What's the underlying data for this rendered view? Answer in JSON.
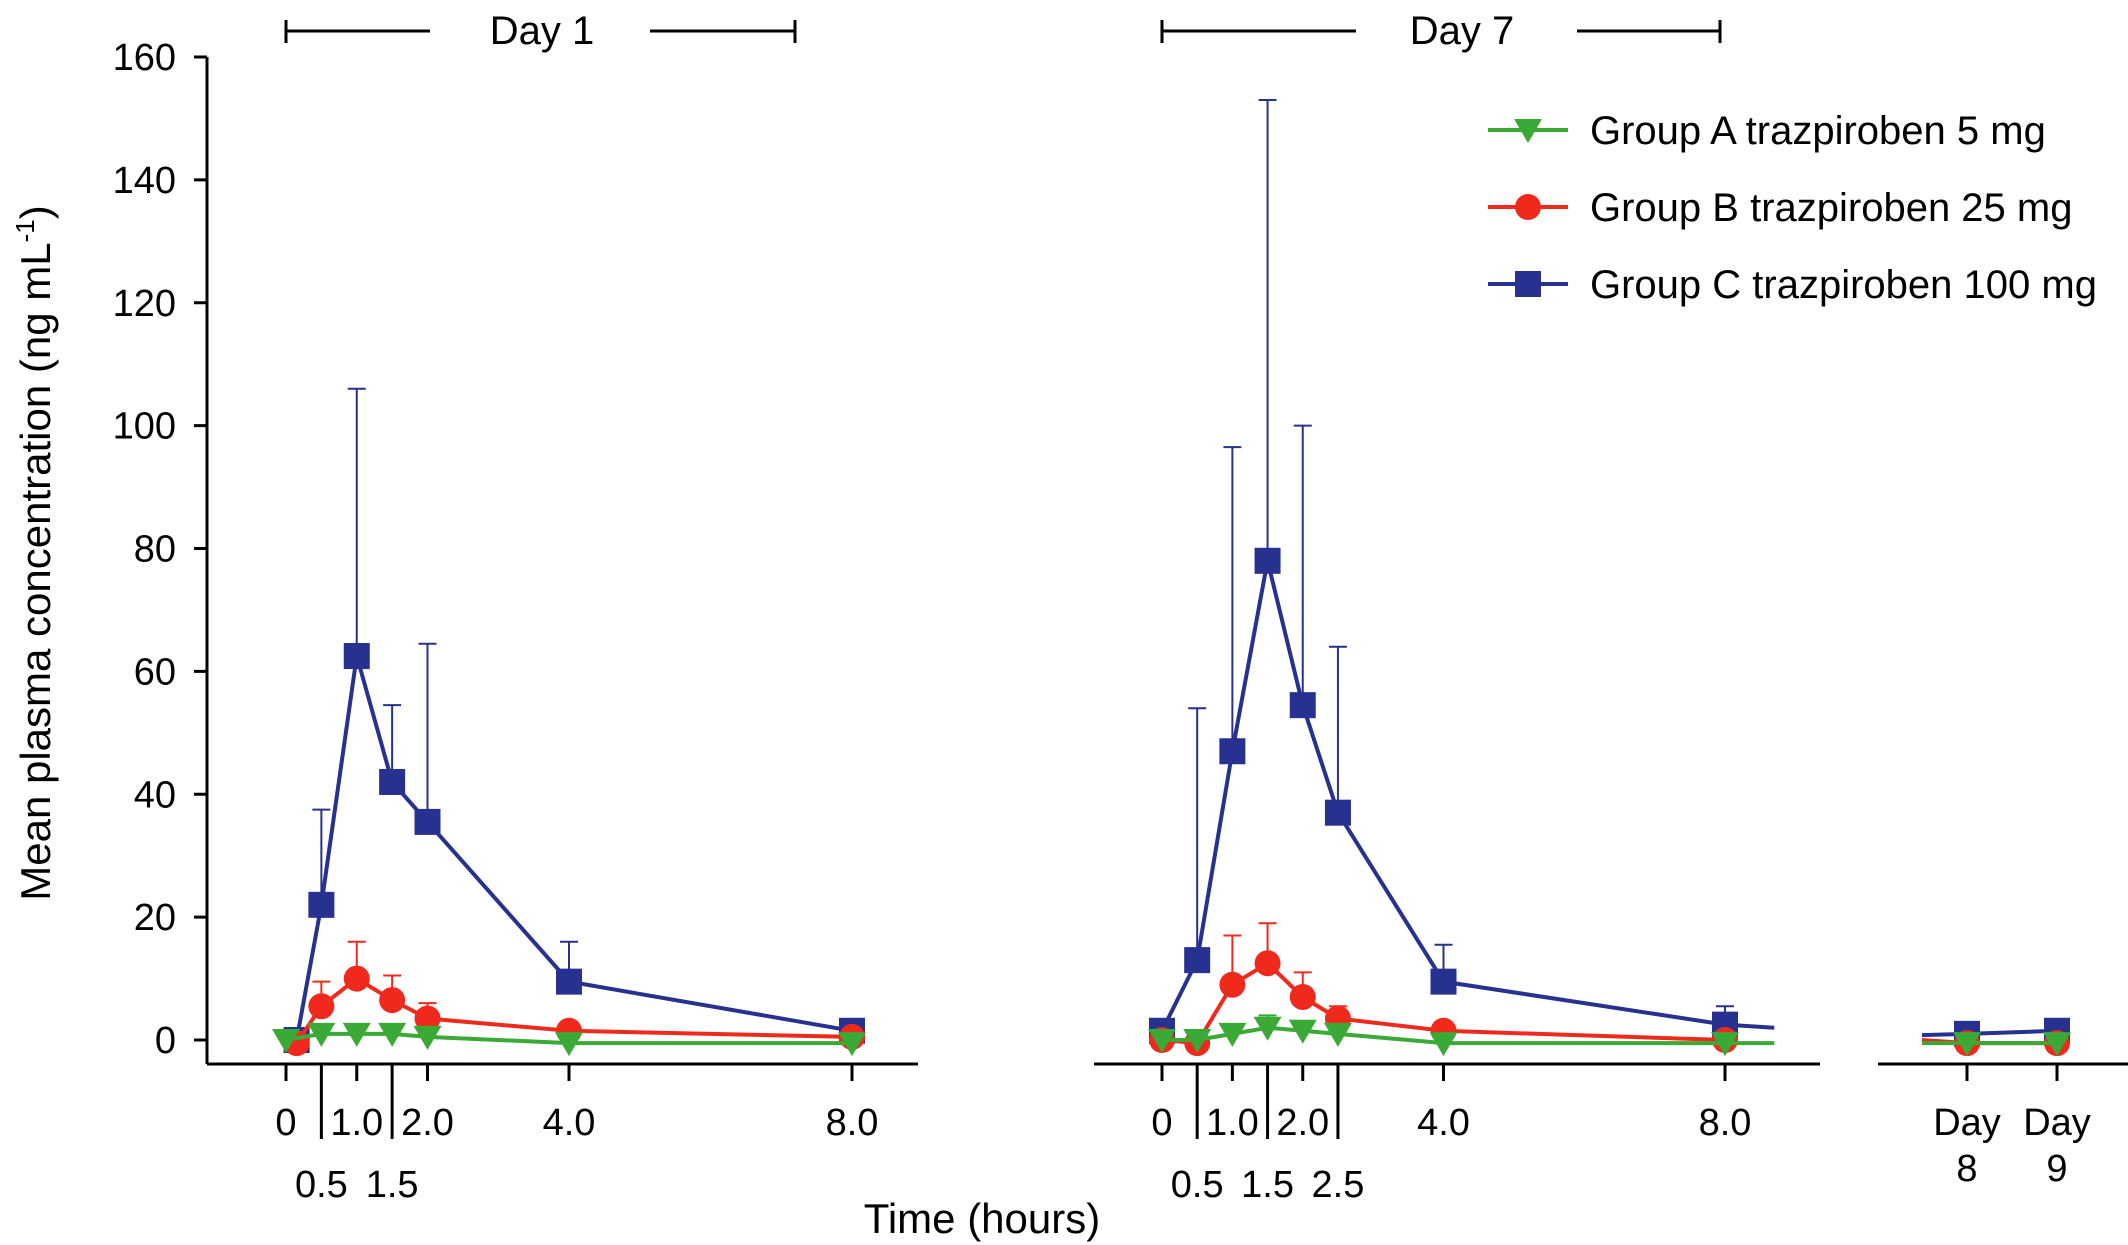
{
  "chart_data": {
    "type": "line",
    "ylabel": "Mean plasma concentration (ng mL",
    "ylabel_sup": "-1",
    "ylabel_close": ")",
    "xlabel": "Time (hours)",
    "ylim": [
      0,
      160
    ],
    "yticks": [
      0,
      20,
      40,
      60,
      80,
      100,
      120,
      140,
      160
    ],
    "colors": {
      "A": "#3aa935",
      "B": "#ef2a1c",
      "C": "#27318f"
    },
    "legend_position": "top-right",
    "series_legend": [
      {
        "key": "A",
        "name": "Group A trazpiroben 5 mg",
        "marker": "triangle-down"
      },
      {
        "key": "B",
        "name": "Group B trazpiroben 25 mg",
        "marker": "circle"
      },
      {
        "key": "C",
        "name": "Group C trazpiroben 100 mg",
        "marker": "square"
      }
    ],
    "panels": [
      {
        "id": "day1",
        "header": "Day 1",
        "x_range": [
          0,
          8
        ],
        "ticks": [
          {
            "x": 0,
            "label": "0",
            "row": "top"
          },
          {
            "x": 0.5,
            "label": "0.5",
            "row": "bottom"
          },
          {
            "x": 1.0,
            "label": "1.0",
            "row": "top"
          },
          {
            "x": 1.5,
            "label": "1.5",
            "row": "bottom"
          },
          {
            "x": 2.0,
            "label": "2.0",
            "row": "top"
          },
          {
            "x": 4.0,
            "label": "4.0",
            "row": "top"
          },
          {
            "x": 8.0,
            "label": "8.0",
            "row": "top"
          }
        ],
        "series": {
          "A": {
            "x": [
              0,
              0.5,
              1.0,
              1.5,
              2.0,
              4.0,
              8.0
            ],
            "y": [
              0,
              1,
              1,
              1,
              0.5,
              -0.5,
              -0.5
            ]
          },
          "B": {
            "x": [
              0.15,
              0.5,
              1.0,
              1.5,
              2.0,
              4.0,
              8.0
            ],
            "y": [
              -0.5,
              5.5,
              10,
              6.5,
              3.5,
              1.5,
              0.5
            ],
            "err": [
              null,
              9.5,
              16,
              10.5,
              6,
              null,
              null
            ]
          },
          "C": {
            "x": [
              0.15,
              0.5,
              1.0,
              1.5,
              2.0,
              4.0,
              8.0
            ],
            "y": [
              0,
              22,
              62.5,
              42,
              35.5,
              9.5,
              1.5
            ],
            "err": [
              null,
              37.5,
              106,
              54.5,
              64.5,
              16,
              null
            ]
          }
        }
      },
      {
        "id": "day7",
        "header": "Day 7",
        "x_range": [
          0,
          8
        ],
        "ticks": [
          {
            "x": 0,
            "label": "0",
            "row": "top"
          },
          {
            "x": 0.5,
            "label": "0.5",
            "row": "bottom"
          },
          {
            "x": 1.0,
            "label": "1.0",
            "row": "top"
          },
          {
            "x": 1.5,
            "label": "1.5",
            "row": "bottom"
          },
          {
            "x": 2.0,
            "label": "2.0",
            "row": "top"
          },
          {
            "x": 2.5,
            "label": "2.5",
            "row": "bottom"
          },
          {
            "x": 4.0,
            "label": "4.0",
            "row": "top"
          },
          {
            "x": 8.0,
            "label": "8.0",
            "row": "top"
          }
        ],
        "series": {
          "A": {
            "x": [
              0,
              0.5,
              1.0,
              1.5,
              2.0,
              2.5,
              4.0,
              8.0,
              8.7
            ],
            "y": [
              0,
              0,
              1,
              2,
              1.5,
              1,
              -0.5,
              -0.5,
              -0.5
            ],
            "err": [
              null,
              null,
              null,
              4,
              null,
              null,
              null,
              null,
              null
            ]
          },
          "B": {
            "x": [
              0,
              0.5,
              1.0,
              1.5,
              2.0,
              2.5,
              4.0,
              8.0
            ],
            "y": [
              0,
              -0.5,
              9,
              12.5,
              7,
              3.5,
              1.5,
              0
            ],
            "err": [
              null,
              null,
              17,
              19,
              11,
              5.5,
              null,
              null
            ]
          },
          "C": {
            "x": [
              0,
              0.5,
              1.0,
              1.5,
              2.0,
              2.5,
              4.0,
              8.0,
              8.7
            ],
            "y": [
              1.5,
              13,
              47,
              78,
              54.5,
              37,
              9.5,
              2.5,
              2
            ],
            "err": [
              null,
              54,
              96.5,
              153,
              100,
              64,
              15.5,
              5.5,
              null
            ]
          }
        }
      },
      {
        "id": "days89",
        "header": "",
        "x_range": [
          7.5,
          9.1
        ],
        "ticks": [
          {
            "x": 8,
            "label": "Day\n8",
            "row": "top"
          },
          {
            "x": 9,
            "label": "Day\n9",
            "row": "top"
          }
        ],
        "series": {
          "A": {
            "x": [
              7.5,
              8,
              9
            ],
            "y": [
              -0.5,
              -0.5,
              -0.5
            ]
          },
          "B": {
            "x": [
              7.5,
              8,
              9
            ],
            "y": [
              0,
              -0.5,
              -0.5
            ]
          },
          "C": {
            "x": [
              7.5,
              8,
              9
            ],
            "y": [
              0.8,
              1,
              1.5
            ]
          }
        }
      }
    ]
  }
}
